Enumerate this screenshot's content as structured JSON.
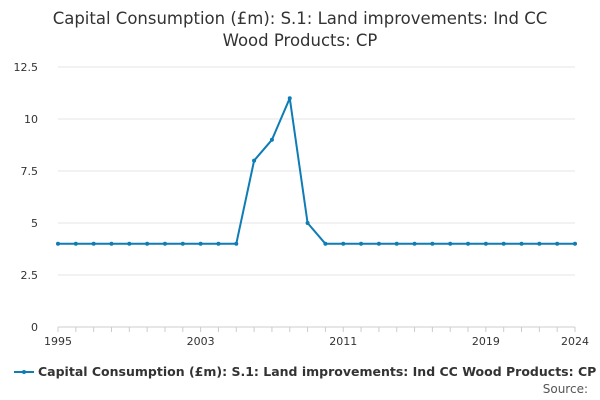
{
  "chart_data": {
    "type": "line",
    "title_lines": [
      "Capital Consumption (£m): S.1: Land improvements: Ind CC",
      "Wood Products: CP"
    ],
    "x": [
      1995,
      1996,
      1997,
      1998,
      1999,
      2000,
      2001,
      2002,
      2003,
      2004,
      2005,
      2006,
      2007,
      2008,
      2009,
      2010,
      2011,
      2012,
      2013,
      2014,
      2015,
      2016,
      2017,
      2018,
      2019,
      2020,
      2021,
      2022,
      2023,
      2024
    ],
    "series": [
      {
        "name": "Capital Consumption (£m): S.1: Land improvements: Ind CC Wood Products: CP",
        "color": "#0e7cb5",
        "values": [
          4,
          4,
          4,
          4,
          4,
          4,
          4,
          4,
          4,
          4,
          4,
          8,
          9,
          11,
          5,
          4,
          4,
          4,
          4,
          4,
          4,
          4,
          4,
          4,
          4,
          4,
          4,
          4,
          4,
          4
        ]
      }
    ],
    "x_ticks": [
      "1995",
      "2003",
      "2011",
      "2019",
      "2024"
    ],
    "y_ticks": [
      "0",
      "2.5",
      "5",
      "7.5",
      "10",
      "12.5"
    ],
    "xlim": [
      1995,
      2024
    ],
    "ylim": [
      0,
      12.5
    ],
    "grid": "horizontal",
    "legend_position": "bottom"
  },
  "footer": {
    "source_label": "Source:"
  },
  "colors": {
    "line": "#0e7cb5",
    "grid": "#e6e6e6",
    "axis": "#cccccc"
  }
}
